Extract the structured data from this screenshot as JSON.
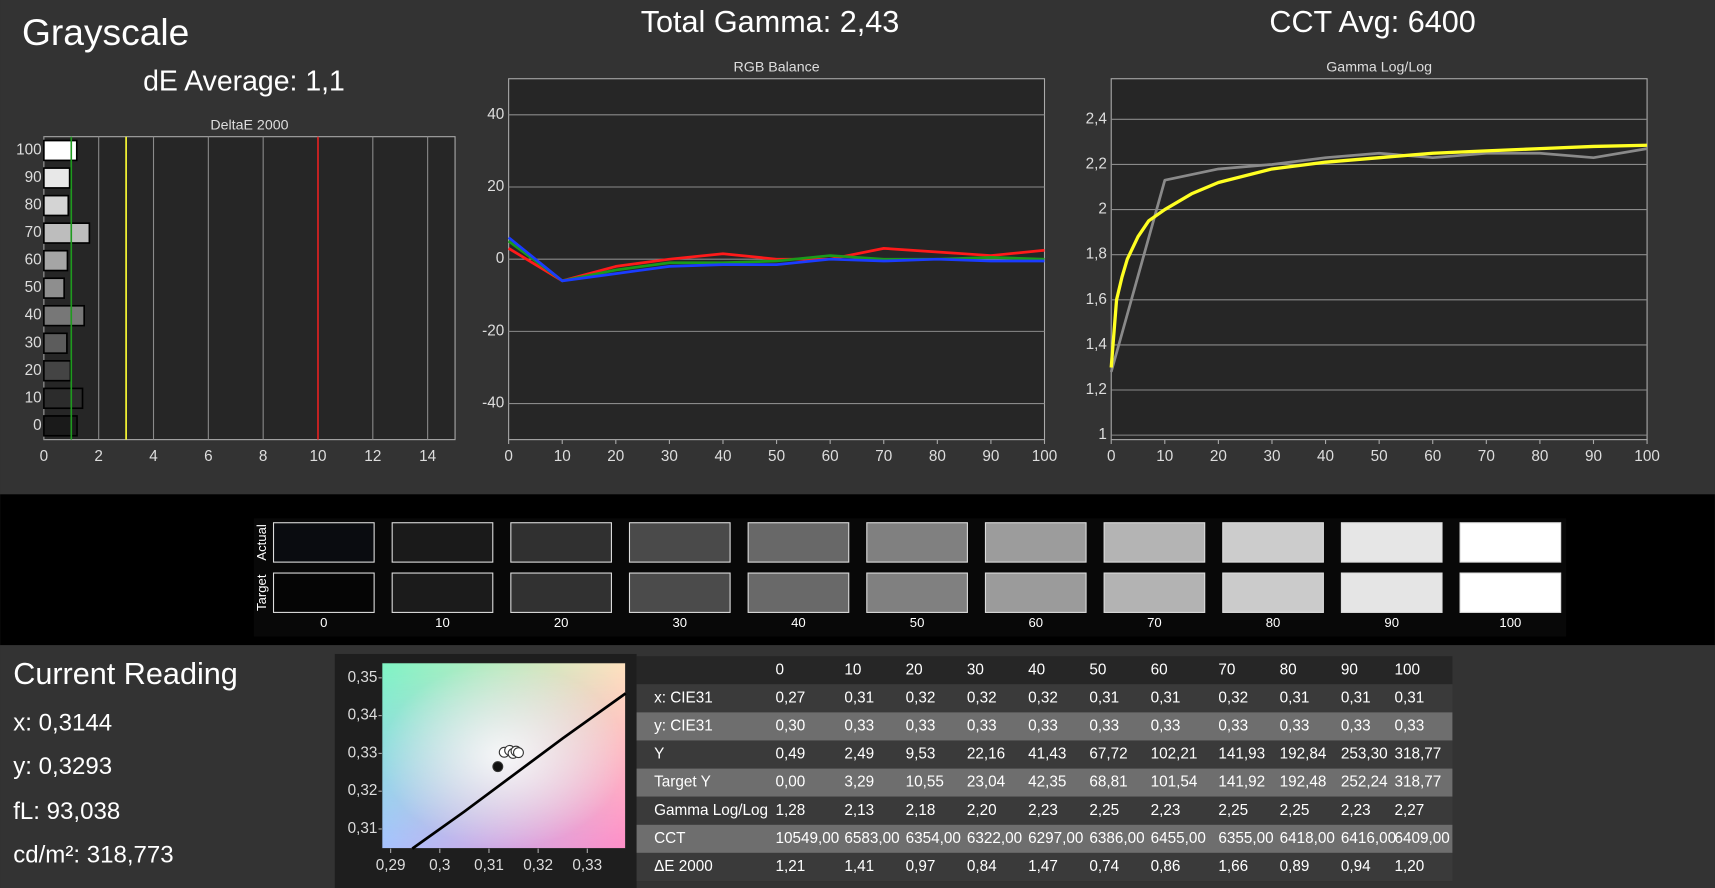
{
  "headings": {
    "page_title": "Grayscale",
    "de_average": "dE Average: 1,1",
    "total_gamma": "Total Gamma: 2,43",
    "cct_avg": "CCT Avg: 6400"
  },
  "chart_data": [
    {
      "type": "barh",
      "title": "DeltaE 2000",
      "categories": [
        "0",
        "10",
        "20",
        "30",
        "40",
        "50",
        "60",
        "70",
        "80",
        "90",
        "100"
      ],
      "values": [
        1.21,
        1.41,
        0.97,
        0.84,
        1.47,
        0.74,
        0.86,
        1.66,
        0.89,
        0.94,
        1.2
      ],
      "colors": [
        "#1a1a1a",
        "#2c2c2c",
        "#444444",
        "#5c5c5c",
        "#777777",
        "#8e8e8e",
        "#a5a5a5",
        "#bdbdbd",
        "#d4d4d4",
        "#e8e8e8",
        "#ffffff"
      ],
      "xlim": [
        0,
        15
      ],
      "xticks": [
        0,
        2,
        4,
        6,
        8,
        10,
        12,
        14
      ],
      "grid": "x",
      "reference_lines": [
        {
          "value": 1,
          "color": "#1f9a1f"
        },
        {
          "value": 3,
          "color": "#ffff33"
        },
        {
          "value": 10,
          "color": "#e02020"
        }
      ]
    },
    {
      "type": "line",
      "title": "RGB Balance",
      "x": [
        0,
        10,
        20,
        30,
        40,
        50,
        60,
        70,
        80,
        90,
        100
      ],
      "series": [
        {
          "color": "#ff1a1a",
          "values": [
            3,
            -6,
            -2,
            0,
            1.5,
            0,
            0,
            3,
            2,
            1,
            2.5
          ]
        },
        {
          "color": "#1a9a1a",
          "values": [
            5,
            -6,
            -3,
            -1,
            -1,
            -0.5,
            1,
            0,
            0,
            0.5,
            0
          ]
        },
        {
          "color": "#1a3cff",
          "values": [
            6,
            -6,
            -4,
            -2,
            -1.5,
            -1.5,
            0,
            -0.5,
            0,
            -0.5,
            -0.5
          ]
        }
      ],
      "xlim": [
        0,
        100
      ],
      "xticks": [
        0,
        10,
        20,
        30,
        40,
        50,
        60,
        70,
        80,
        90,
        100
      ],
      "ylim": [
        -50,
        50
      ],
      "yticks": [
        40,
        20,
        0,
        -20,
        -40
      ],
      "grid": "y"
    },
    {
      "type": "line",
      "title": "Gamma Log/Log",
      "x": [
        0,
        10,
        20,
        30,
        40,
        50,
        60,
        70,
        80,
        90,
        100
      ],
      "series": [
        {
          "color": "#8a8a8a",
          "values": [
            1.28,
            2.13,
            2.18,
            2.2,
            2.23,
            2.25,
            2.23,
            2.25,
            2.25,
            2.23,
            2.27
          ]
        },
        {
          "color": "#ffff22",
          "x": [
            0,
            1,
            2,
            3,
            5,
            7,
            10,
            15,
            20,
            30,
            40,
            50,
            60,
            70,
            80,
            90,
            100
          ],
          "values": [
            1.3,
            1.6,
            1.7,
            1.78,
            1.88,
            1.95,
            2.0,
            2.07,
            2.12,
            2.18,
            2.21,
            2.23,
            2.25,
            2.26,
            2.27,
            2.28,
            2.285
          ]
        }
      ],
      "xlim": [
        0,
        100
      ],
      "xticks": [
        0,
        10,
        20,
        30,
        40,
        50,
        60,
        70,
        80,
        90,
        100
      ],
      "ylim": [
        0.98,
        2.58
      ],
      "yticks": [
        {
          "value": 2.4,
          "label": "2,4"
        },
        {
          "value": 2.2,
          "label": "2,2"
        },
        2,
        {
          "value": 1.8,
          "label": "1,8"
        },
        {
          "value": 1.6,
          "label": "1,6"
        },
        {
          "value": 1.4,
          "label": "1,4"
        },
        {
          "value": 1.2,
          "label": "1,2"
        },
        1
      ],
      "grid": "y"
    },
    {
      "type": "scatter",
      "series": [
        {
          "mode": "line",
          "color": "#000000",
          "x": [
            0.2944,
            0.305,
            0.315,
            0.325,
            0.3378
          ],
          "values": [
            0.3048,
            0.3146,
            0.3243,
            0.334,
            0.3459
          ]
        },
        {
          "mode": "markers",
          "color": "#ffffff",
          "x": [
            0.3131,
            0.3142,
            0.3149,
            0.3155,
            0.316
          ],
          "values": [
            0.3303,
            0.3308,
            0.33,
            0.3306,
            0.3302
          ]
        },
        {
          "mode": "markers",
          "color": "#111111",
          "x": [
            0.3118
          ],
          "values": [
            0.3265
          ]
        }
      ],
      "xlim": [
        0.2882,
        0.3378
      ],
      "xticks": [
        {
          "value": 0.29,
          "label": "0,29"
        },
        {
          "value": 0.3,
          "label": "0,3"
        },
        {
          "value": 0.31,
          "label": "0,31"
        },
        {
          "value": 0.32,
          "label": "0,32"
        },
        {
          "value": 0.33,
          "label": "0,33"
        }
      ],
      "ylim": [
        0.3048,
        0.354
      ],
      "yticks": [
        {
          "value": 0.35,
          "label": "0,35"
        },
        {
          "value": 0.34,
          "label": "0,34"
        },
        {
          "value": 0.33,
          "label": "0,33"
        },
        {
          "value": 0.32,
          "label": "0,32"
        },
        {
          "value": 0.31,
          "label": "0,31"
        }
      ],
      "grid": false
    }
  ],
  "swatches": {
    "row_labels": [
      "Actual",
      "Target"
    ],
    "labels": [
      "0",
      "10",
      "20",
      "30",
      "40",
      "50",
      "60",
      "70",
      "80",
      "90",
      "100"
    ],
    "rows": [
      [
        "#0a0c10",
        "#1a1a1a",
        "#303030",
        "#4a4a4a",
        "#686868",
        "#808080",
        "#9c9c9c",
        "#b4b4b4",
        "#cccccc",
        "#e6e6e6",
        "#ffffff"
      ],
      [
        "#050505",
        "#1b1b1b",
        "#313131",
        "#4b4b4b",
        "#696969",
        "#808080",
        "#9b9b9b",
        "#b3b3b3",
        "#cbcbcb",
        "#e5e5e5",
        "#ffffff"
      ]
    ]
  },
  "current_reading": {
    "title": "Current Reading",
    "lines": [
      "x: 0,3144",
      "y: 0,3293",
      "fL: 93,038",
      "cd/m²: 318,773"
    ]
  },
  "table": {
    "columns": [
      "0",
      "10",
      "20",
      "30",
      "40",
      "50",
      "60",
      "70",
      "80",
      "90",
      "100"
    ],
    "rows": [
      {
        "label": "x: CIE31",
        "cells": [
          "0,27",
          "0,31",
          "0,32",
          "0,32",
          "0,32",
          "0,31",
          "0,31",
          "0,32",
          "0,31",
          "0,31",
          "0,31"
        ]
      },
      {
        "label": "y: CIE31",
        "cells": [
          "0,30",
          "0,33",
          "0,33",
          "0,33",
          "0,33",
          "0,33",
          "0,33",
          "0,33",
          "0,33",
          "0,33",
          "0,33"
        ]
      },
      {
        "label": "Y",
        "cells": [
          "0,49",
          "2,49",
          "9,53",
          "22,16",
          "41,43",
          "67,72",
          "102,21",
          "141,93",
          "192,84",
          "253,30",
          "318,77"
        ]
      },
      {
        "label": "Target Y",
        "cells": [
          "0,00",
          "3,29",
          "10,55",
          "23,04",
          "42,35",
          "68,81",
          "101,54",
          "141,92",
          "192,48",
          "252,24",
          "318,77"
        ]
      },
      {
        "label": "Gamma Log/Log",
        "cells": [
          "1,28",
          "2,13",
          "2,18",
          "2,20",
          "2,23",
          "2,25",
          "2,23",
          "2,25",
          "2,25",
          "2,23",
          "2,27"
        ]
      },
      {
        "label": "CCT",
        "cells": [
          "10549,00",
          "6583,00",
          "6354,00",
          "6322,00",
          "6297,00",
          "6386,00",
          "6455,00",
          "6355,00",
          "6418,00",
          "6416,00",
          "6409,00"
        ]
      },
      {
        "label": "ΔE 2000",
        "cells": [
          "1,21",
          "1,41",
          "0,97",
          "0,84",
          "1,47",
          "0,74",
          "0,86",
          "1,66",
          "0,89",
          "0,94",
          "1,20"
        ]
      }
    ]
  }
}
